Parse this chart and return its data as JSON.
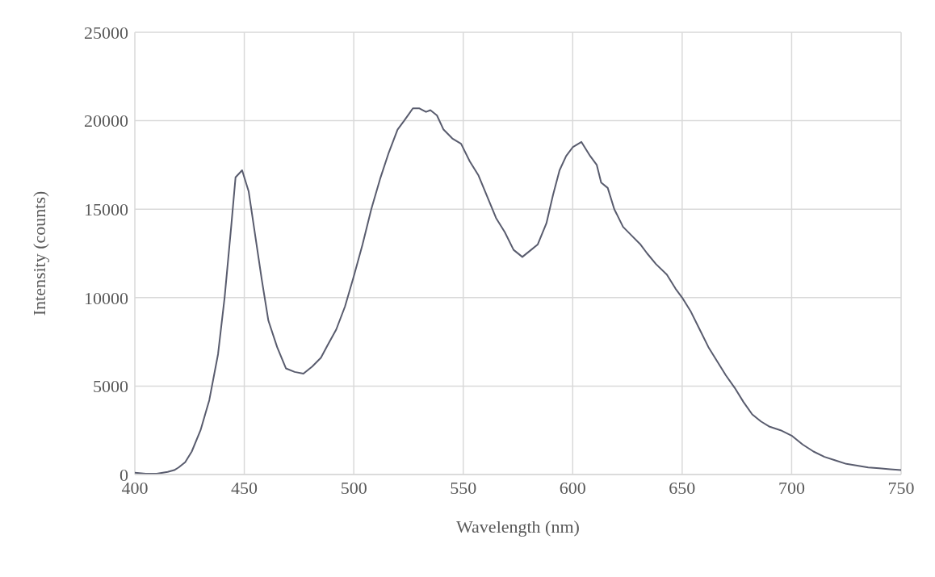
{
  "chart_data": {
    "type": "line",
    "xlabel": "Wavelength (nm)",
    "ylabel": "Intensity (counts)",
    "x": [
      400,
      405,
      410,
      415,
      418,
      420,
      423,
      426,
      430,
      434,
      438,
      441,
      444,
      446,
      449,
      452,
      455,
      458,
      461,
      465,
      469,
      473,
      477,
      481,
      485,
      488,
      492,
      496,
      500,
      504,
      508,
      512,
      516,
      520,
      523,
      527,
      530,
      533,
      535,
      538,
      541,
      545,
      549,
      553,
      557,
      561,
      565,
      569,
      573,
      577,
      581,
      584,
      588,
      591,
      594,
      597,
      600,
      604,
      608,
      611,
      613,
      616,
      619,
      623,
      627,
      631,
      634,
      638,
      643,
      647,
      650,
      654,
      658,
      662,
      666,
      670,
      674,
      678,
      682,
      686,
      690,
      695,
      700,
      705,
      710,
      715,
      720,
      725,
      730,
      735,
      740,
      745,
      750
    ],
    "series": [
      {
        "color": "#595c6e",
        "values": [
          100,
          50,
          50,
          150,
          250,
          400,
          700,
          1300,
          2500,
          4200,
          6800,
          10000,
          14000,
          16800,
          17200,
          16000,
          13500,
          11000,
          8700,
          7200,
          6000,
          5800,
          5700,
          6100,
          6600,
          7300,
          8200,
          9500,
          11200,
          13000,
          15000,
          16700,
          18200,
          19500,
          20000,
          20700,
          20700,
          20500,
          20600,
          20300,
          19500,
          19000,
          18700,
          17700,
          16900,
          15700,
          14500,
          13700,
          12700,
          12300,
          12700,
          13000,
          14200,
          15800,
          17200,
          18000,
          18500,
          18800,
          18000,
          17500,
          16500,
          16200,
          15000,
          14000,
          13500,
          13000,
          12500,
          11900,
          11300,
          10500,
          10000,
          9200,
          8200,
          7200,
          6400,
          5600,
          4900,
          4100,
          3400,
          3000,
          2700,
          2500,
          2200,
          1700,
          1300,
          1000,
          800,
          600,
          500,
          400,
          350,
          300,
          250
        ]
      }
    ],
    "xlim": [
      400,
      750
    ],
    "xticks": [
      400,
      450,
      500,
      550,
      600,
      650,
      700,
      750
    ],
    "ylim": [
      0,
      25000
    ],
    "yticks": [
      0,
      5000,
      10000,
      15000,
      20000,
      25000
    ],
    "grid": true,
    "marker": "none",
    "line_style": "solid",
    "legend": false
  }
}
